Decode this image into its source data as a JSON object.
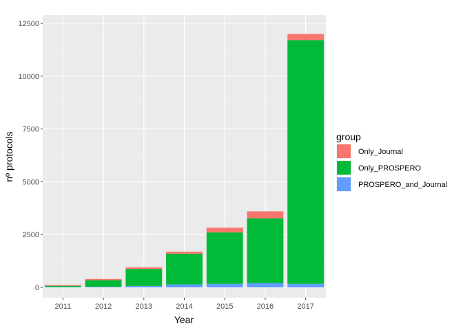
{
  "chart_data": {
    "type": "bar",
    "stacked": true,
    "xlabel": "Year",
    "ylabel": "nº protocols",
    "categories": [
      "2011",
      "2012",
      "2013",
      "2014",
      "2015",
      "2016",
      "2017"
    ],
    "series": [
      {
        "name": "PROSPERO_and_Journal",
        "color": "#619CFF",
        "values": [
          15,
          30,
          70,
          140,
          170,
          200,
          170
        ]
      },
      {
        "name": "Only_PROSPERO",
        "color": "#00BA38",
        "values": [
          60,
          310,
          800,
          1450,
          2430,
          3070,
          11540
        ]
      },
      {
        "name": "Only_Journal",
        "color": "#F8766D",
        "values": [
          35,
          60,
          80,
          100,
          230,
          330,
          290
        ]
      }
    ],
    "ylim": [
      0,
      12500
    ],
    "yticks": [
      0,
      2500,
      5000,
      7500,
      10000,
      12500
    ],
    "ytick_labels": [
      "0",
      "2500",
      "5000",
      "7500",
      "10000",
      "12500"
    ],
    "grid": true,
    "panel_background": "#EBEBEB",
    "legend": {
      "title": "group",
      "position": "right",
      "entries": [
        {
          "name": "Only_Journal",
          "color": "#F8766D"
        },
        {
          "name": "Only_PROSPERO",
          "color": "#00BA38"
        },
        {
          "name": "PROSPERO_and_Journal",
          "color": "#619CFF"
        }
      ]
    }
  }
}
